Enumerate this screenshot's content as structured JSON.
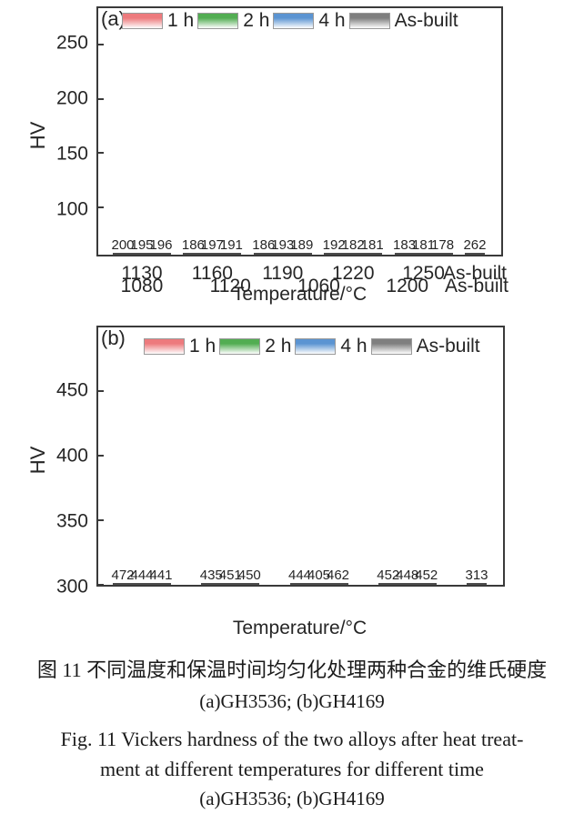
{
  "chart_data": [
    {
      "type": "bar",
      "panel_label": "(a)",
      "alloy": "GH3536",
      "ylabel": "HV",
      "xlabel": "Temperature/°C",
      "ylim": [
        57,
        283
      ],
      "yticks": [
        100,
        150,
        200,
        250
      ],
      "grid": false,
      "legend_position": "top-inside",
      "categories": [
        "1130",
        "1160",
        "1190",
        "1220",
        "1250"
      ],
      "series": [
        {
          "name": "1 h",
          "color": "#ed7a7d",
          "values": [
            200,
            186,
            186,
            192,
            183
          ]
        },
        {
          "name": "2 h",
          "color": "#52ad52",
          "values": [
            195,
            197,
            193,
            182,
            181
          ]
        },
        {
          "name": "4 h",
          "color": "#5b94d2",
          "values": [
            196,
            191,
            189,
            181,
            178
          ]
        }
      ],
      "as_built": {
        "name": "As-built",
        "color": "#7f7f7f",
        "value": 262
      }
    },
    {
      "type": "bar",
      "panel_label": "(b)",
      "alloy": "GH4169",
      "ylabel": "HV",
      "xlabel": "Temperature/°C",
      "ylim": [
        300,
        499
      ],
      "yticks": [
        300,
        350,
        400,
        450
      ],
      "grid": false,
      "legend_position": "top-inside",
      "categories": [
        "1080",
        "1120",
        "1060",
        "1200"
      ],
      "series": [
        {
          "name": "1 h",
          "color": "#ed7a7d",
          "values": [
            472,
            435,
            444,
            452
          ]
        },
        {
          "name": "2 h",
          "color": "#52ad52",
          "values": [
            444,
            451,
            405,
            448
          ]
        },
        {
          "name": "4 h",
          "color": "#5b94d2",
          "values": [
            441,
            450,
            462,
            452
          ]
        }
      ],
      "as_built": {
        "name": "As-built",
        "color": "#7f7f7f",
        "value": 313
      }
    }
  ],
  "captions": {
    "zh_line1": "图 11  不同温度和保温时间均匀化处理两种合金的维氏硬度",
    "zh_line2": "(a)GH3536; (b)GH4169",
    "en_line1": "Fig. 11   Vickers hardness of the two alloys after heat treat-",
    "en_line2": "ment at different temperatures for different time",
    "en_line3": "(a)GH3536; (b)GH4169"
  },
  "colors": {
    "bar_border": "#4c4c4c",
    "axis": "#3a3a3a",
    "text": "#262626"
  }
}
